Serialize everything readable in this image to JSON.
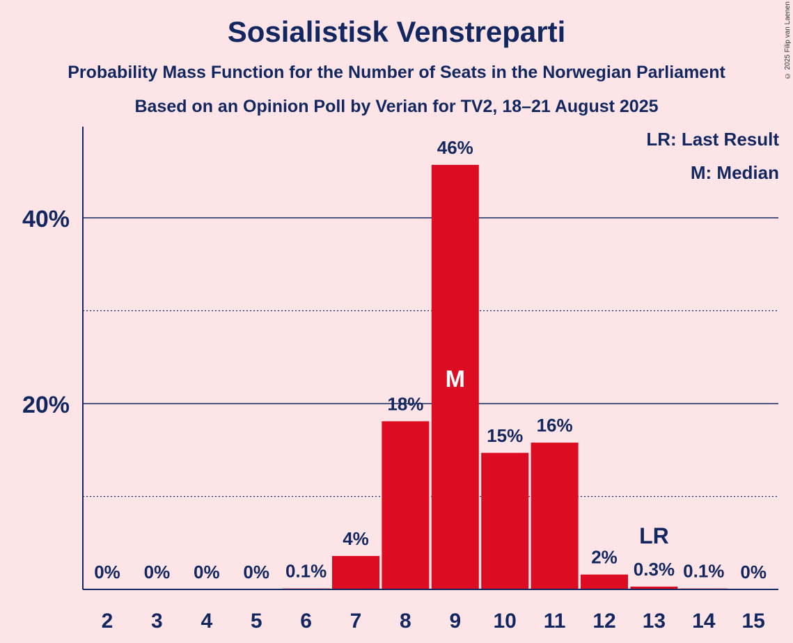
{
  "title": "Sosialistisk Venstreparti",
  "subtitle": "Probability Mass Function for the Number of Seats in the Norwegian Parliament",
  "subtitle2": "Based on an Opinion Poll by Verian for TV2, 18–21 August 2025",
  "copyright": "© 2025 Filip van Laenen",
  "legend": {
    "last_result": "LR: Last Result",
    "median": "M: Median"
  },
  "colors": {
    "bar": "#dc0d22",
    "text": "#12275f",
    "background": "#fde5e7"
  },
  "chart_data": {
    "type": "bar",
    "categories": [
      "2",
      "3",
      "4",
      "5",
      "6",
      "7",
      "8",
      "9",
      "10",
      "11",
      "12",
      "13",
      "14",
      "15"
    ],
    "values": [
      0,
      0,
      0,
      0,
      0.1,
      3.6,
      18.1,
      45.7,
      14.7,
      15.8,
      1.6,
      0.3,
      0.1,
      0
    ],
    "labels": [
      "0%",
      "0%",
      "0%",
      "0%",
      "0.1%",
      "4%",
      "18%",
      "46%",
      "15%",
      "16%",
      "2%",
      "0.3%",
      "0.1%",
      "0%"
    ],
    "ylim": [
      0,
      50
    ],
    "yticks": [
      20,
      40
    ],
    "ytick_labels": [
      "20%",
      "40%"
    ],
    "minor_gridlines": [
      10,
      30
    ],
    "median_category": "9",
    "median_marker": "M",
    "last_result_category": "13",
    "last_result_marker": "LR"
  }
}
